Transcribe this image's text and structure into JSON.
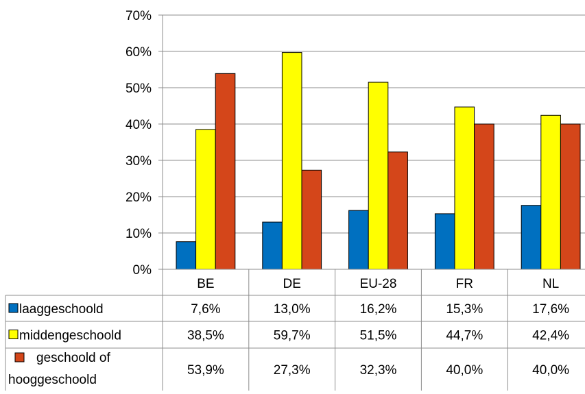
{
  "chart_data": {
    "type": "bar",
    "categories": [
      "BE",
      "DE",
      "EU-28",
      "FR",
      "NL"
    ],
    "series": [
      {
        "name": "laaggeschoold",
        "color": "#0070C0",
        "values": [
          7.6,
          13.0,
          16.2,
          15.3,
          17.6
        ],
        "labels": [
          "7,6%",
          "13,0%",
          "16,2%",
          "15,3%",
          "17,6%"
        ]
      },
      {
        "name": "middengeschoold",
        "color": "#FFFF00",
        "values": [
          38.5,
          59.7,
          51.5,
          44.7,
          42.4
        ],
        "labels": [
          "38,5%",
          "59,7%",
          "51,5%",
          "44,7%",
          "42,4%"
        ]
      },
      {
        "name": "geschoold of hooggeschoold",
        "name_lines": [
          "geschoold of",
          "hooggeschoold"
        ],
        "color": "#D4461A",
        "values": [
          53.9,
          27.3,
          32.3,
          40.0,
          40.0
        ],
        "labels": [
          "53,9%",
          "27,3%",
          "32,3%",
          "40,0%",
          "40,0%"
        ]
      }
    ],
    "ylim": [
      0,
      70
    ],
    "yticks": [
      0,
      10,
      20,
      30,
      40,
      50,
      60,
      70
    ],
    "ytick_labels": [
      "0%",
      "10%",
      "20%",
      "30%",
      "40%",
      "50%",
      "60%",
      "70%"
    ],
    "grid": true,
    "legend": "data-table",
    "title": "",
    "xlabel": "",
    "ylabel": ""
  }
}
